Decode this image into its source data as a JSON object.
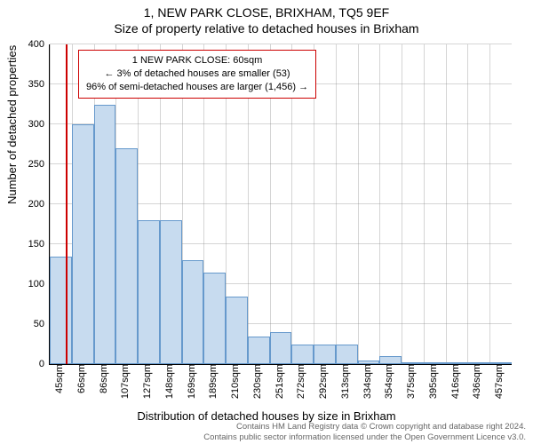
{
  "header": {
    "address": "1, NEW PARK CLOSE, BRIXHAM, TQ5 9EF",
    "subtitle": "Size of property relative to detached houses in Brixham"
  },
  "chart": {
    "type": "histogram",
    "plot_background": "#ffffff",
    "grid_color": "#888888",
    "grid_opacity": 0.35,
    "bar_fill": "#c7dbef",
    "bar_border": "#6699cc",
    "marker_color": "#cc0000",
    "marker_position_value": 60,
    "y": {
      "min": 0,
      "max": 400,
      "step": 50,
      "label": "Number of detached properties",
      "label_fontsize": 13,
      "tick_fontsize": 11
    },
    "x": {
      "start": 45,
      "step_width": 20.5,
      "labels": [
        "45sqm",
        "66sqm",
        "86sqm",
        "107sqm",
        "127sqm",
        "148sqm",
        "169sqm",
        "189sqm",
        "210sqm",
        "230sqm",
        "251sqm",
        "272sqm",
        "292sqm",
        "313sqm",
        "334sqm",
        "354sqm",
        "375sqm",
        "395sqm",
        "416sqm",
        "436sqm",
        "457sqm"
      ],
      "label": "Distribution of detached houses by size in Brixham",
      "label_fontsize": 13,
      "tick_fontsize": 11
    },
    "values": [
      135,
      300,
      325,
      270,
      180,
      180,
      130,
      115,
      85,
      35,
      40,
      25,
      25,
      25,
      5,
      10,
      2,
      1,
      1,
      2,
      2
    ],
    "callout": {
      "line1": "1 NEW PARK CLOSE: 60sqm",
      "line2": "← 3% of detached houses are smaller (53)",
      "line3": "96% of semi-detached houses are larger (1,456) →",
      "border_color": "#cc0000",
      "fontsize": 11
    }
  },
  "footer": {
    "line1": "Contains HM Land Registry data © Crown copyright and database right 2024.",
    "line2": "Contains public sector information licensed under the Open Government Licence v3.0."
  }
}
